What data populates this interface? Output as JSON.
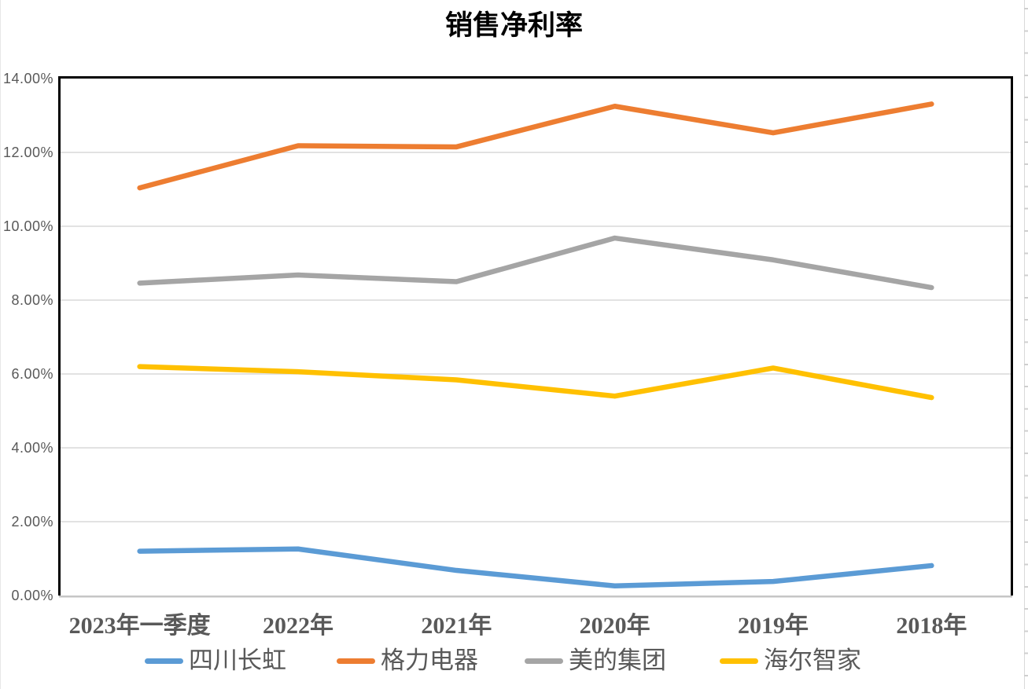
{
  "chart_data": {
    "type": "line",
    "title": "销售净利率",
    "categories": [
      "2023年一季度",
      "2022年",
      "2021年",
      "2020年",
      "2019年",
      "2018年"
    ],
    "series": [
      {
        "name": "四川长虹",
        "color": "#5B9BD5",
        "values": [
          1.2,
          1.26,
          0.68,
          0.26,
          0.38,
          0.81
        ]
      },
      {
        "name": "格力电器",
        "color": "#ED7D31",
        "values": [
          11.04,
          12.18,
          12.15,
          13.25,
          12.53,
          13.31
        ]
      },
      {
        "name": "美的集团",
        "color": "#A5A5A5",
        "values": [
          8.46,
          8.68,
          8.5,
          9.68,
          9.09,
          8.34
        ]
      },
      {
        "name": "海尔智家",
        "color": "#FFC000",
        "values": [
          6.2,
          6.06,
          5.84,
          5.4,
          6.16,
          5.36
        ]
      }
    ],
    "ylim": [
      0,
      14
    ],
    "y_tick_step": 2,
    "y_tick_labels": [
      "0.00%",
      "2.00%",
      "4.00%",
      "6.00%",
      "8.00%",
      "10.00%",
      "12.00%",
      "14.00%"
    ],
    "xlabel": "",
    "ylabel": "",
    "grid": true,
    "legend_position": "bottom",
    "colors": {
      "gridline": "#D9D9D9",
      "plot_border": "#000000",
      "bottom_axis": "#C6C6C6",
      "axis_label": "#595959",
      "title": "#000000"
    }
  }
}
